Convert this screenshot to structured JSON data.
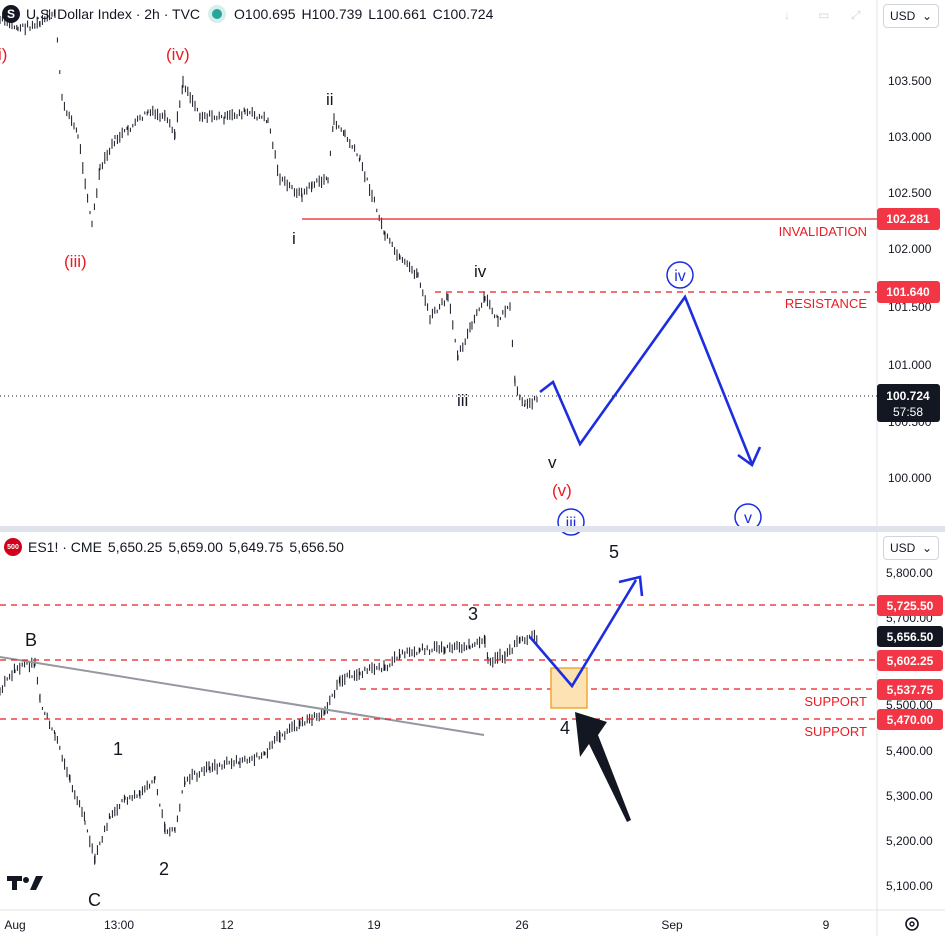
{
  "top_chart": {
    "symbol_name": "U.S. Dollar Index · 2h · TVC",
    "ohlc": {
      "o": "O100.695",
      "h": "H100.739",
      "l": "L100.661",
      "c": "C100.724"
    },
    "currency": "USD",
    "price_ticks": [
      "103.500",
      "103.000",
      "102.500",
      "102.000",
      "101.500",
      "101.000",
      "100.000"
    ],
    "level_tags": {
      "invalidation": "102.281",
      "resistance": "101.640",
      "last": "100.724",
      "countdown": "57:58"
    },
    "level_labels": {
      "invalidation": "INVALIDATION",
      "resistance": "RESISTANCE"
    },
    "wave_labels": {
      "i_partial": "i)",
      "iv_paren": "(iv)",
      "iii_paren": "(iii)",
      "ii": "ii",
      "i": "i",
      "iv": "iv",
      "iii": "iii",
      "v": "v",
      "v_paren": "(v)",
      "iii_circle": "iii",
      "iv_circle": "iv",
      "v_circle": "v"
    },
    "partial_tick": "100.500"
  },
  "bottom_chart": {
    "symbol_name": "ES1! · CME",
    "ohlc": [
      "5,650.25",
      "5,659.00",
      "5,649.75",
      "5,656.50"
    ],
    "currency": "USD",
    "price_ticks": [
      "5,800.00",
      "5,700.00",
      "5,500.00",
      "5,400.00",
      "5,300.00",
      "5,200.00",
      "5,100.00"
    ],
    "level_tags": {
      "l1": "5,725.50",
      "last": "5,656.50",
      "l2": "5,602.25",
      "l3": "5,537.75",
      "l4": "5,470.00"
    },
    "level_labels": {
      "support1": "SUPPORT",
      "support2": "SUPPORT"
    },
    "wave_labels": {
      "b": "B",
      "c": "C",
      "one": "1",
      "two": "2",
      "three": "3",
      "four": "4",
      "five": "5"
    }
  },
  "time_axis": [
    "Aug",
    "13:00",
    "12",
    "19",
    "26",
    "Sep",
    "9"
  ],
  "colors": {
    "red": "#e81d23",
    "blue": "#1c2ee0",
    "tag_red": "#f23645",
    "black": "#131722"
  },
  "icons": {
    "settings": "settings-icon",
    "brand": "tradingview-logo"
  }
}
